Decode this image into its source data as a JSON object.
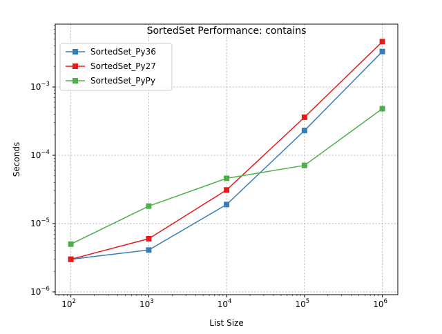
{
  "chart_data": {
    "type": "line",
    "title": "SortedSet Performance: contains",
    "xlabel": "List Size",
    "ylabel": "Seconds",
    "xscale": "log",
    "yscale": "log",
    "xlim": [
      63,
      1580000
    ],
    "ylim": [
      9.1e-07,
      0.0083
    ],
    "grid": true,
    "legend_position": "top-left",
    "x": [
      100,
      1000,
      10000,
      100000,
      1000000
    ],
    "x_ticks": [
      {
        "value": 100,
        "base": "10",
        "exp": "2"
      },
      {
        "value": 1000,
        "base": "10",
        "exp": "3"
      },
      {
        "value": 10000,
        "base": "10",
        "exp": "4"
      },
      {
        "value": 100000,
        "base": "10",
        "exp": "5"
      },
      {
        "value": 1000000,
        "base": "10",
        "exp": "6"
      }
    ],
    "y_ticks": [
      {
        "value": 1e-06,
        "base": "10",
        "exp": "−6"
      },
      {
        "value": 1e-05,
        "base": "10",
        "exp": "−5"
      },
      {
        "value": 0.0001,
        "base": "10",
        "exp": "−4"
      },
      {
        "value": 0.001,
        "base": "10",
        "exp": "−3"
      }
    ],
    "series": [
      {
        "name": "SortedSet_Py36",
        "color": "#377eb8",
        "values": [
          3e-06,
          4.1e-06,
          1.9e-05,
          0.00023,
          0.0033
        ]
      },
      {
        "name": "SortedSet_Py27",
        "color": "#e41a1c",
        "values": [
          3e-06,
          6e-06,
          3.1e-05,
          0.00036,
          0.0046
        ]
      },
      {
        "name": "SortedSet_PyPy",
        "color": "#4daf4a",
        "values": [
          5e-06,
          1.8e-05,
          4.6e-05,
          7.1e-05,
          0.00048
        ]
      }
    ]
  }
}
